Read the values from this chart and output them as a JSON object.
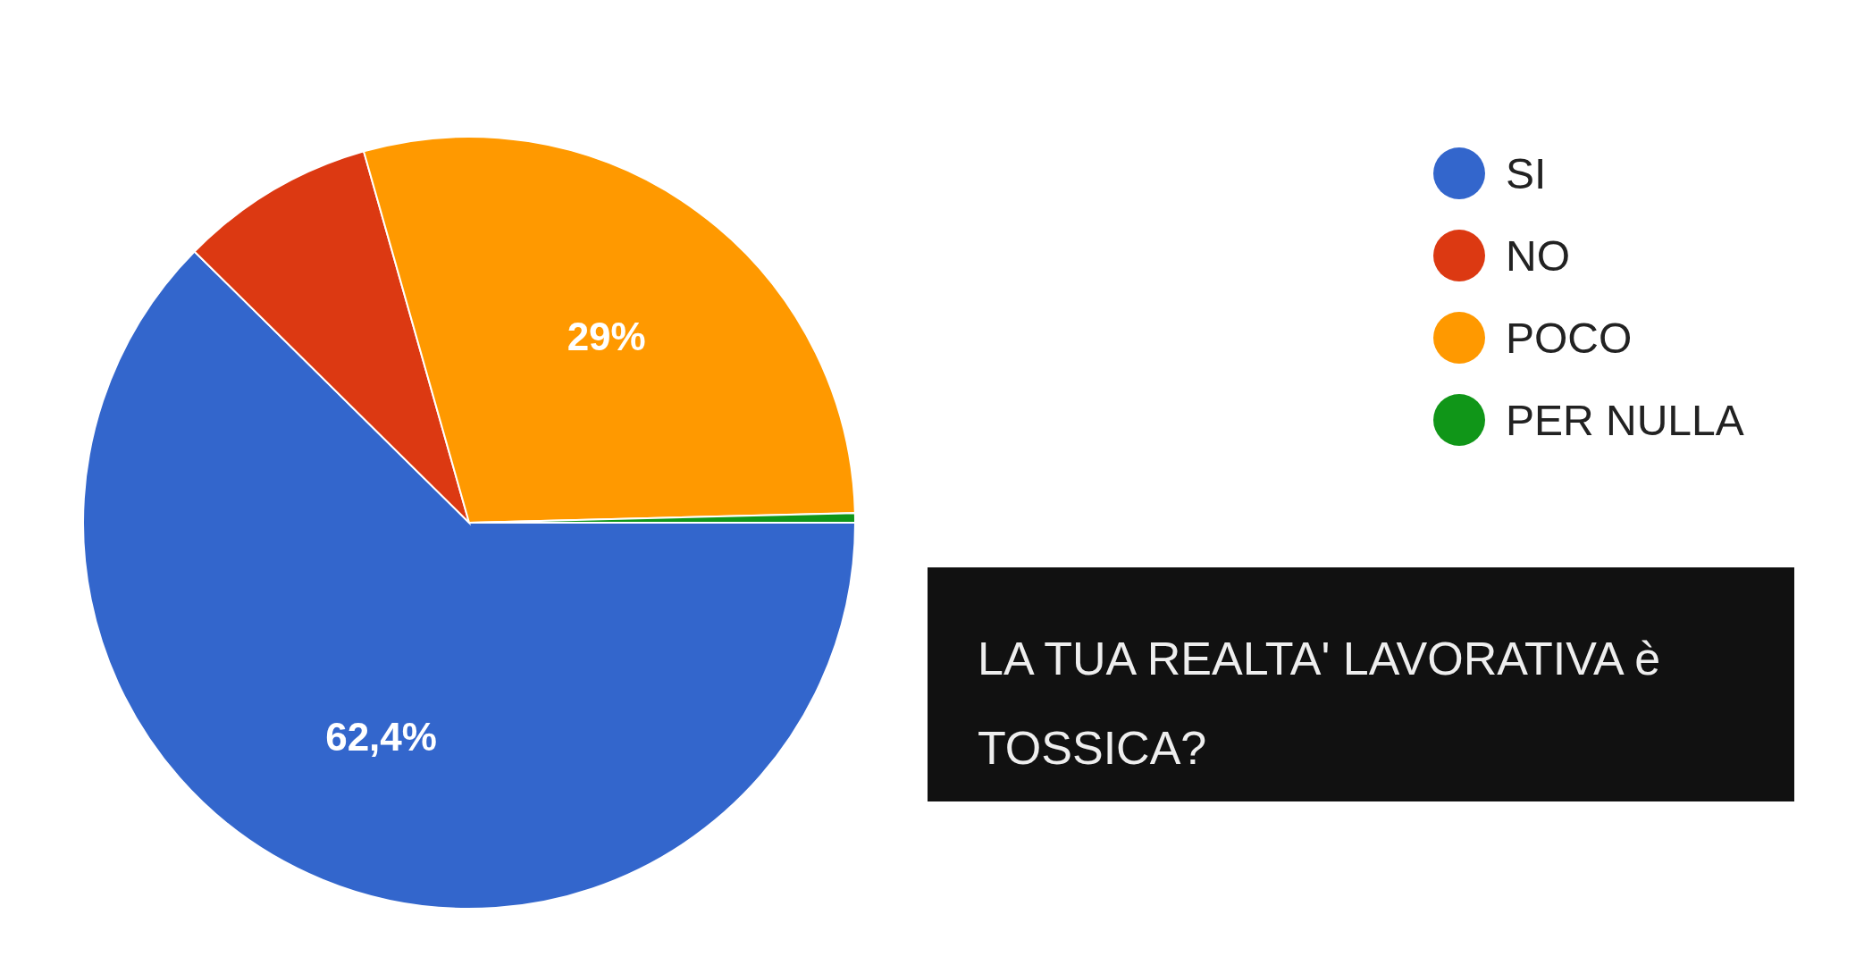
{
  "chart_data": {
    "type": "pie",
    "title": "LA TUA REALTA' LAVORATIVA è TOSSICA?",
    "categories": [
      "SI",
      "NO",
      "POCO",
      "PER NULLA"
    ],
    "values": [
      62.4,
      8.2,
      29,
      0.4
    ],
    "colors": [
      "#3366cc",
      "#dc3912",
      "#ff9900",
      "#109618"
    ],
    "value_labels": [
      "62,4%",
      null,
      "29%",
      null
    ],
    "legend": "top right"
  }
}
